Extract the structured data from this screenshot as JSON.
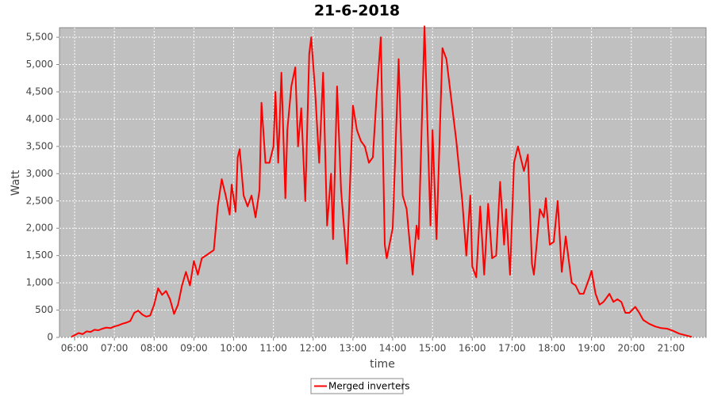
{
  "chart_data": {
    "type": "line",
    "title": "21-6-2018",
    "xlabel": "time",
    "ylabel": "Watt",
    "x": [
      5.92,
      6.0,
      6.1,
      6.2,
      6.3,
      6.4,
      6.5,
      6.6,
      6.7,
      6.8,
      6.9,
      7.0,
      7.1,
      7.2,
      7.3,
      7.4,
      7.5,
      7.6,
      7.7,
      7.8,
      7.9,
      8.0,
      8.1,
      8.2,
      8.3,
      8.4,
      8.5,
      8.6,
      8.7,
      8.8,
      8.9,
      9.0,
      9.1,
      9.2,
      9.3,
      9.4,
      9.5,
      9.6,
      9.7,
      9.8,
      9.9,
      9.95,
      10.05,
      10.1,
      10.15,
      10.25,
      10.35,
      10.45,
      10.55,
      10.65,
      10.7,
      10.8,
      10.9,
      11.0,
      11.05,
      11.12,
      11.2,
      11.3,
      11.35,
      11.45,
      11.55,
      11.62,
      11.7,
      11.8,
      11.9,
      11.95,
      12.05,
      12.15,
      12.25,
      12.35,
      12.45,
      12.5,
      12.6,
      12.7,
      12.85,
      13.0,
      13.1,
      13.2,
      13.3,
      13.4,
      13.5,
      13.6,
      13.7,
      13.8,
      13.85,
      14.0,
      14.15,
      14.25,
      14.35,
      14.5,
      14.6,
      14.65,
      14.8,
      14.85,
      14.95,
      15.0,
      15.1,
      15.25,
      15.35,
      15.45,
      15.6,
      15.75,
      15.85,
      15.95,
      16.0,
      16.1,
      16.2,
      16.3,
      16.4,
      16.5,
      16.6,
      16.7,
      16.8,
      16.85,
      16.95,
      17.05,
      17.15,
      17.3,
      17.4,
      17.5,
      17.55,
      17.7,
      17.8,
      17.85,
      17.95,
      18.05,
      18.15,
      18.25,
      18.35,
      18.5,
      18.6,
      18.7,
      18.8,
      18.95,
      19.0,
      19.1,
      19.2,
      19.3,
      19.45,
      19.55,
      19.65,
      19.75,
      19.85,
      19.95,
      20.1,
      20.2,
      20.3,
      20.45,
      20.6,
      20.75,
      20.9,
      21.05,
      21.2,
      21.35,
      21.52
    ],
    "series": [
      {
        "name": "Merged inverters",
        "color": "#ff0000",
        "values": [
          10,
          40,
          80,
          60,
          110,
          100,
          140,
          130,
          160,
          180,
          170,
          200,
          220,
          250,
          270,
          300,
          450,
          490,
          420,
          380,
          400,
          600,
          900,
          780,
          850,
          700,
          430,
          600,
          950,
          1200,
          950,
          1400,
          1150,
          1450,
          1500,
          1550,
          1600,
          2400,
          2900,
          2600,
          2250,
          2800,
          2300,
          3300,
          3450,
          2600,
          2400,
          2600,
          2200,
          2700,
          4300,
          3200,
          3200,
          3500,
          4500,
          3200,
          4850,
          2550,
          3800,
          4600,
          4950,
          3500,
          4200,
          2500,
          5200,
          5500,
          4500,
          3200,
          4850,
          2050,
          3000,
          1800,
          4600,
          2700,
          1350,
          4250,
          3800,
          3600,
          3500,
          3200,
          3300,
          4500,
          5500,
          1700,
          1450,
          2000,
          5100,
          2600,
          2350,
          1150,
          2050,
          1800,
          5700,
          4500,
          2050,
          3800,
          1800,
          5300,
          5100,
          4500,
          3600,
          2500,
          1500,
          2600,
          1300,
          1100,
          2400,
          1150,
          2450,
          1450,
          1500,
          2850,
          1700,
          2350,
          1150,
          3200,
          3500,
          3050,
          3350,
          1350,
          1150,
          2350,
          2200,
          2550,
          1700,
          1750,
          2500,
          1200,
          1850,
          1000,
          950,
          800,
          800,
          1100,
          1220,
          800,
          600,
          650,
          800,
          650,
          700,
          650,
          450,
          450,
          560,
          450,
          320,
          250,
          200,
          170,
          160,
          120,
          70,
          40,
          10
        ]
      }
    ],
    "xlim": [
      5.62,
      21.88
    ],
    "xticks": [
      {
        "value": 6,
        "label": "06:00"
      },
      {
        "value": 7,
        "label": "07:00"
      },
      {
        "value": 8,
        "label": "08:00"
      },
      {
        "value": 9,
        "label": "09:00"
      },
      {
        "value": 10,
        "label": "10:00"
      },
      {
        "value": 11,
        "label": "11:00"
      },
      {
        "value": 12,
        "label": "12:00"
      },
      {
        "value": 13,
        "label": "13:00"
      },
      {
        "value": 14,
        "label": "14:00"
      },
      {
        "value": 15,
        "label": "15:00"
      },
      {
        "value": 16,
        "label": "16:00"
      },
      {
        "value": 17,
        "label": "17:00"
      },
      {
        "value": 18,
        "label": "18:00"
      },
      {
        "value": 19,
        "label": "19:00"
      },
      {
        "value": 20,
        "label": "20:00"
      },
      {
        "value": 21,
        "label": "21:00"
      }
    ],
    "ylim": [
      0,
      5675
    ],
    "yticks": [
      0,
      500,
      {
        "value": 1000,
        "label": "1,000"
      },
      {
        "value": 1500,
        "label": "1,500"
      },
      {
        "value": 2000,
        "label": "2,000"
      },
      {
        "value": 2500,
        "label": "2,500"
      },
      {
        "value": 3000,
        "label": "3,000"
      },
      {
        "value": 3500,
        "label": "3,500"
      },
      {
        "value": 4000,
        "label": "4,000"
      },
      {
        "value": 4500,
        "label": "4,500"
      },
      {
        "value": 5000,
        "label": "5,000"
      },
      {
        "value": 5500,
        "label": "5,500"
      }
    ],
    "grid": true,
    "legend": "bottom"
  }
}
